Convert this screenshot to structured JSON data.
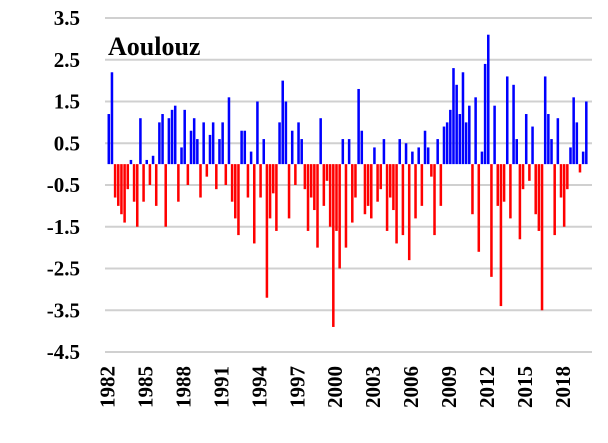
{
  "chart_data": {
    "type": "bar",
    "title": "Aoulouz",
    "x": [
      1982,
      1982.25,
      1982.5,
      1982.75,
      1983,
      1983.25,
      1983.5,
      1983.75,
      1984,
      1984.25,
      1984.5,
      1984.75,
      1985,
      1985.25,
      1985.5,
      1985.75,
      1986,
      1986.25,
      1986.5,
      1986.75,
      1987,
      1987.25,
      1987.5,
      1987.75,
      1988,
      1988.25,
      1988.5,
      1988.75,
      1989,
      1989.25,
      1989.5,
      1989.75,
      1990,
      1990.25,
      1990.5,
      1990.75,
      1991,
      1991.25,
      1991.5,
      1991.75,
      1992,
      1992.25,
      1992.5,
      1992.75,
      1993,
      1993.25,
      1993.5,
      1993.75,
      1994,
      1994.25,
      1994.5,
      1994.75,
      1995,
      1995.25,
      1995.5,
      1995.75,
      1996,
      1996.25,
      1996.5,
      1996.75,
      1997,
      1997.25,
      1997.5,
      1997.75,
      1998,
      1998.25,
      1998.5,
      1998.75,
      1999,
      1999.25,
      1999.5,
      1999.75,
      2000,
      2000.25,
      2000.5,
      2000.75,
      2001,
      2001.25,
      2001.5,
      2001.75,
      2002,
      2002.25,
      2002.5,
      2002.75,
      2003,
      2003.25,
      2003.5,
      2003.75,
      2004,
      2004.25,
      2004.5,
      2004.75,
      2005,
      2005.25,
      2005.5,
      2005.75,
      2006,
      2006.25,
      2006.5,
      2006.75,
      2007,
      2007.25,
      2007.5,
      2007.75,
      2008,
      2008.25,
      2008.5,
      2008.75,
      2009,
      2009.25,
      2009.5,
      2009.75,
      2010,
      2010.25,
      2010.5,
      2010.75,
      2011,
      2011.25,
      2011.5,
      2011.75,
      2012,
      2012.25,
      2012.5,
      2012.75,
      2013,
      2013.25,
      2013.5,
      2013.75,
      2014,
      2014.25,
      2014.5,
      2014.75,
      2015,
      2015.25,
      2015.5,
      2015.75,
      2016,
      2016.25,
      2016.5,
      2016.75,
      2017,
      2017.25,
      2017.5,
      2017.75,
      2018,
      2018.25,
      2018.5,
      2018.75,
      2019,
      2019.25,
      2019.5,
      2019.75
    ],
    "values": [
      1.2,
      2.2,
      -0.8,
      -1.0,
      -1.2,
      -1.4,
      -0.6,
      0.1,
      -0.9,
      -1.5,
      1.1,
      -0.9,
      0.1,
      -0.5,
      0.2,
      -1.0,
      1.0,
      1.2,
      -1.5,
      1.1,
      1.3,
      1.4,
      -0.9,
      0.4,
      1.3,
      -0.5,
      0.8,
      1.1,
      0.6,
      -0.8,
      1.0,
      -0.3,
      0.7,
      1.0,
      -0.6,
      0.6,
      1.0,
      -0.5,
      1.6,
      -0.9,
      -1.3,
      -1.7,
      0.8,
      0.8,
      -0.8,
      0.3,
      -1.9,
      1.5,
      -0.8,
      0.6,
      -3.2,
      -1.3,
      -0.7,
      -1.6,
      1.0,
      2.0,
      1.5,
      -1.3,
      0.8,
      -0.5,
      1.0,
      0.6,
      -0.6,
      -1.6,
      -0.8,
      -1.1,
      -2.0,
      1.1,
      -1.0,
      -0.4,
      -1.5,
      -3.9,
      -1.6,
      -2.5,
      0.6,
      -2.0,
      0.6,
      -1.4,
      -0.8,
      1.8,
      0.8,
      -1.2,
      -1.0,
      -1.3,
      0.4,
      -0.9,
      -0.6,
      0.6,
      -1.6,
      -0.8,
      -1.1,
      -1.9,
      0.6,
      -1.7,
      0.5,
      -2.3,
      0.3,
      -1.3,
      0.4,
      -1.0,
      0.8,
      0.4,
      -0.3,
      -1.7,
      0.6,
      -1.0,
      0.9,
      1.0,
      1.3,
      2.3,
      1.9,
      1.2,
      2.2,
      1.0,
      1.4,
      -1.2,
      1.6,
      -2.1,
      0.3,
      2.4,
      3.1,
      -2.7,
      1.4,
      -1.0,
      -3.4,
      -0.9,
      2.1,
      -1.3,
      1.9,
      0.6,
      -1.8,
      -0.6,
      1.2,
      -0.4,
      0.9,
      -1.2,
      -1.6,
      -3.5,
      2.1,
      1.2,
      0.6,
      -1.7,
      1.1,
      -0.8,
      -1.5,
      -0.6,
      0.4,
      1.6,
      1.0,
      -0.2,
      0.3,
      1.5
    ],
    "positive_color": "#0000ff",
    "negative_color": "#ff0000",
    "xlim": [
      1981.8,
      2020.3
    ],
    "xticks": [
      1982,
      1985,
      1988,
      1991,
      1994,
      1997,
      2000,
      2003,
      2006,
      2009,
      2012,
      2015,
      2018
    ],
    "ylim": [
      -4.5,
      3.5
    ],
    "yticks": [
      3.5,
      2.5,
      1.5,
      0.5,
      -0.5,
      -1.5,
      -2.5,
      -3.5,
      -4.5
    ],
    "grid": true
  }
}
